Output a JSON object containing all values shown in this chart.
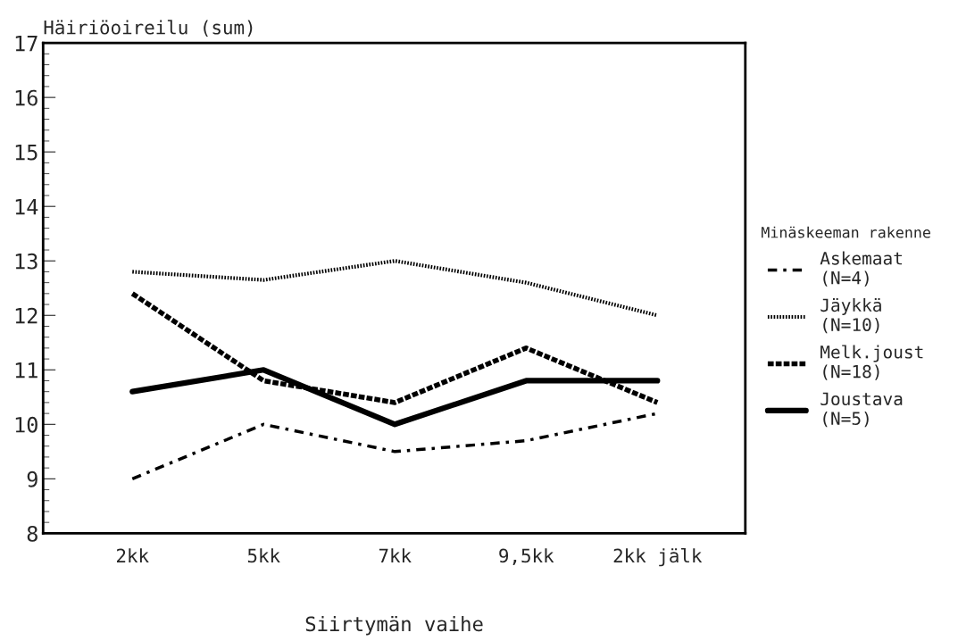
{
  "chart_data": {
    "type": "line",
    "ylabel": "Häiriöoireilu (sum)",
    "xlabel": "Siirtymän vaihe",
    "legend_title": "Minäskeeman rakenne",
    "legend": "right",
    "categories": [
      "2kk",
      "5kk",
      "7kk",
      "9,5kk",
      "2kk jälk"
    ],
    "ylim": [
      8,
      17
    ],
    "yticks": [
      8,
      9,
      10,
      11,
      12,
      13,
      14,
      15,
      16,
      17
    ],
    "grid": false,
    "series": [
      {
        "name": "Askemaat\n(N=4)",
        "color": "#000000",
        "line_style": "dashdot",
        "values": [
          9.0,
          10.0,
          9.5,
          9.7,
          10.2
        ]
      },
      {
        "name": "Jäykkä\n(N=10)",
        "color": "#000000",
        "line_style": "dotted",
        "values": [
          12.8,
          12.65,
          13.0,
          12.6,
          12.0
        ]
      },
      {
        "name": "Melk.joust\n(N=18)",
        "color": "#000000",
        "line_style": "dashed",
        "values": [
          12.4,
          10.8,
          10.4,
          11.4,
          10.4
        ]
      },
      {
        "name": "Joustava\n(N=5)",
        "color": "#000000",
        "line_style": "solid",
        "values": [
          10.6,
          11.0,
          10.0,
          10.8,
          10.8
        ]
      }
    ]
  }
}
